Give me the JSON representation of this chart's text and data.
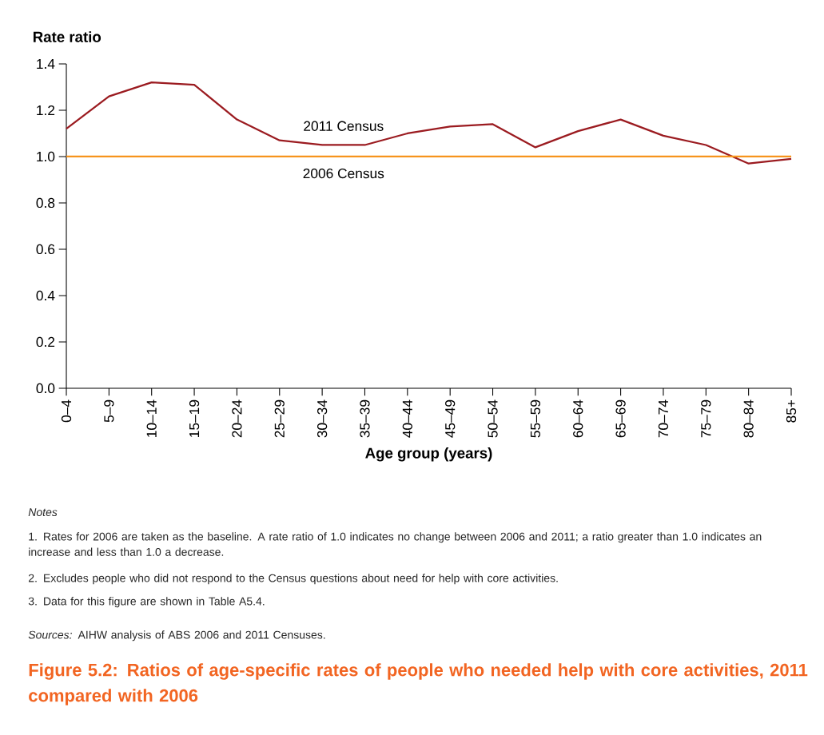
{
  "chart_data": {
    "type": "line",
    "title": "Figure 5.2: Ratios of age-specific rates of people who needed help with core activities, 2011 compared with 2006",
    "xlabel": "Age group (years)",
    "ylabel": "Rate ratio",
    "categories": [
      "0–4",
      "5–9",
      "10–14",
      "15–19",
      "20–24",
      "25–29",
      "30–34",
      "35–39",
      "40–44",
      "45–49",
      "50–54",
      "55–59",
      "60–64",
      "65–69",
      "70–74",
      "75–79",
      "80–84",
      "85+"
    ],
    "series": [
      {
        "name": "2011 Census",
        "color": "#9b1b20",
        "values": [
          1.12,
          1.26,
          1.32,
          1.31,
          1.16,
          1.07,
          1.05,
          1.05,
          1.1,
          1.13,
          1.14,
          1.04,
          1.11,
          1.16,
          1.09,
          1.05,
          0.97,
          0.99
        ]
      },
      {
        "name": "2006 Census",
        "color": "#f7941d",
        "values": [
          1.0,
          1.0,
          1.0,
          1.0,
          1.0,
          1.0,
          1.0,
          1.0,
          1.0,
          1.0,
          1.0,
          1.0,
          1.0,
          1.0,
          1.0,
          1.0,
          1.0,
          1.0
        ]
      }
    ],
    "ylim": [
      0,
      1.4
    ],
    "yticks": [
      {
        "value": 0,
        "label": "0.0"
      },
      0.2,
      0.4,
      0.6,
      0.8,
      {
        "value": 1,
        "label": "1.0"
      },
      1.2,
      1.4
    ],
    "grid": false,
    "legend": false,
    "marker": "none",
    "line_style": "solid",
    "annotations": [
      "Notes",
      "1. Rates for 2006 are taken as the baseline. A rate ratio of 1.0 indicates no change between 2006 and 2011; a ratio greater than 1.0 indicates an increase and less than 1.0 a decrease.",
      "2. Excludes people who did not respond to the Census questions about need for help with core activities.",
      "3. Data for this figure are shown in Table A5.4.",
      "*Sources:* AIHW analysis of ABS 2006 and 2011 Censuses."
    ]
  }
}
